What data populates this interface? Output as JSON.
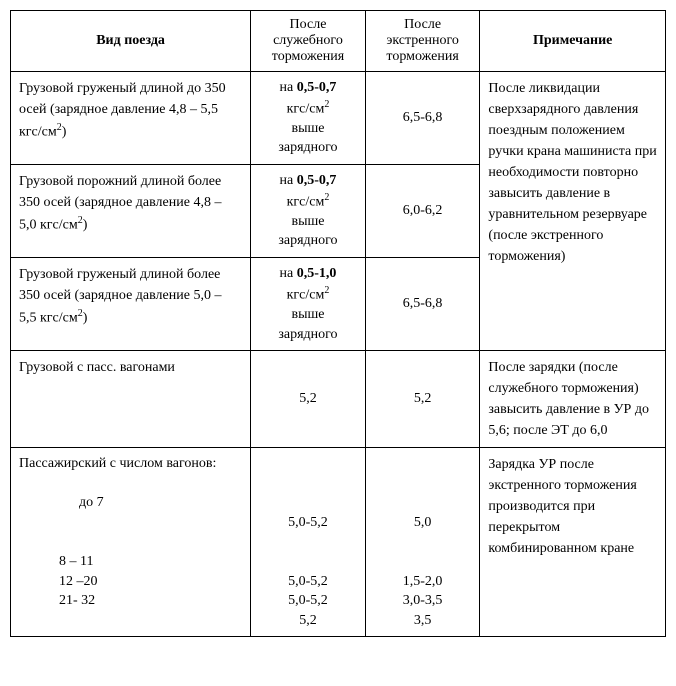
{
  "table": {
    "headers": {
      "train_type": "Вид поезда",
      "after_service": "После служебного торможения",
      "after_emergency": "После экстренного торможения",
      "note": "Примечание"
    },
    "rows": [
      {
        "type_pre": "Грузовой груженый  длиной до 350 осей (зарядное давление 4,8 – 5,5 кгс/см",
        "type_sup": "2",
        "type_post": ")",
        "service_pre": "на ",
        "service_bold": "0,5-0,7",
        "service_unit_pre": "кгс/см",
        "service_unit_sup": "2",
        "service_tail1": "выше",
        "service_tail2": "зарядного",
        "emergency": "6,5-6,8"
      },
      {
        "type_pre": "Грузовой порожний длиной более 350 осей (зарядное давление 4,8 – 5,0 кгс/см",
        "type_sup": "2",
        "type_post": ")",
        "service_pre": "на ",
        "service_bold": "0,5-0,7",
        "service_unit_pre": "кгс/см",
        "service_unit_sup": "2",
        "service_tail1": "выше",
        "service_tail2": "зарядного",
        "emergency": "6,0-6,2"
      },
      {
        "type_pre": "Грузовой груженый длиной более 350 осей (зарядное давление 5,0 – 5,5 кгс/см",
        "type_sup": "2",
        "type_post": ")",
        "service_pre": "на ",
        "service_bold": "0,5-1,0",
        "service_unit_pre": "кгс/см",
        "service_unit_sup": "2",
        "service_tail1": "выше",
        "service_tail2": "зарядного",
        "emergency": "6,5-6,8"
      }
    ],
    "note_group1": "После ликвидации сверхзарядного давления поездным положением ручки крана машиниста при необходимости повторно завысить давление в уравнительном резервуаре (после экстренного торможения)",
    "row_pass": {
      "type": "Грузовой с пасс. вагонами",
      "service": "5,2",
      "emergency": "5,2",
      "note": "После зарядки (после служебного торможения) завысить давление в УР до 5,6; после ЭТ до 6,0"
    },
    "row_passenger": {
      "type_head": "Пассажирский с числом вагонов:",
      "sub1_label": "до 7",
      "sub1_service": "5,0-5,2",
      "sub1_emergency": "5,0",
      "sub2_label": "8 – 11",
      "sub3_label": "12 –20",
      "sub4_label": "21- 32",
      "svc2": "5,0-5,2",
      "svc3": "5,0-5,2",
      "svc4": "5,2",
      "em2": "1,5-2,0",
      "em3": "3,0-3,5",
      "em4": "3,5",
      "note": "Зарядка УР после экстренного торможения производится при перекрытом комбинированном кране"
    }
  }
}
